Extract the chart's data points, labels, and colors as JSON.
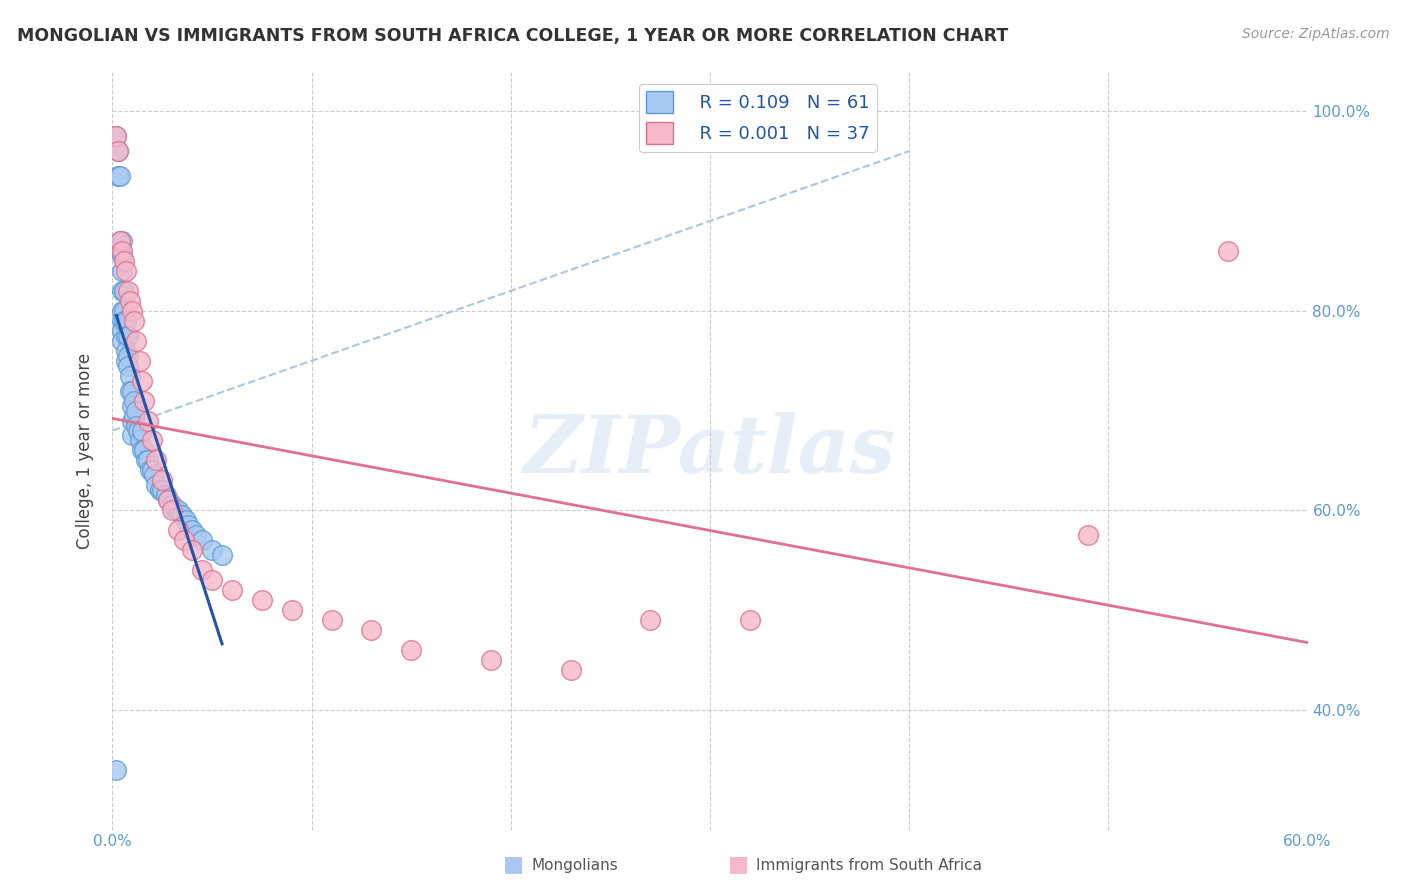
{
  "title": "MONGOLIAN VS IMMIGRANTS FROM SOUTH AFRICA COLLEGE, 1 YEAR OR MORE CORRELATION CHART",
  "source": "Source: ZipAtlas.com",
  "ylabel": "College, 1 year or more",
  "xlim": [
    0.0,
    0.6
  ],
  "ylim": [
    0.28,
    1.04
  ],
  "yticks": [
    0.4,
    0.6,
    0.8,
    1.0
  ],
  "ytick_labels": [
    "40.0%",
    "60.0%",
    "80.0%",
    "100.0%"
  ],
  "xtick_positions": [
    0.0,
    0.1,
    0.2,
    0.3,
    0.4,
    0.5,
    0.6
  ],
  "xtick_labels": [
    "0.0%",
    "",
    "",
    "",
    "",
    "",
    "60.0%"
  ],
  "legend_blue_r": "R = 0.109",
  "legend_blue_n": "N = 61",
  "legend_pink_r": "R = 0.001",
  "legend_pink_n": "N = 37",
  "watermark": "ZIPatlas",
  "blue_r": 0.109,
  "pink_r": 0.001,
  "blue_fill": "#A8C8F0",
  "blue_edge": "#5B9BD5",
  "pink_fill": "#F4B8C8",
  "pink_edge": "#E07090",
  "blue_line_color": "#2255AA",
  "pink_line_color": "#E07090",
  "dashed_line_color": "#A0C0E0",
  "mongolians_x": [
    0.002,
    0.003,
    0.003,
    0.004,
    0.004,
    0.004,
    0.005,
    0.005,
    0.005,
    0.005,
    0.005,
    0.005,
    0.005,
    0.005,
    0.006,
    0.006,
    0.006,
    0.007,
    0.007,
    0.007,
    0.007,
    0.008,
    0.008,
    0.008,
    0.009,
    0.009,
    0.01,
    0.01,
    0.01,
    0.01,
    0.011,
    0.011,
    0.012,
    0.012,
    0.013,
    0.014,
    0.015,
    0.015,
    0.016,
    0.017,
    0.018,
    0.019,
    0.02,
    0.021,
    0.022,
    0.024,
    0.025,
    0.027,
    0.028,
    0.03,
    0.032,
    0.033,
    0.035,
    0.037,
    0.038,
    0.04,
    0.042,
    0.045,
    0.05,
    0.055,
    0.002
  ],
  "mongolians_y": [
    0.975,
    0.96,
    0.935,
    0.935,
    0.87,
    0.86,
    0.87,
    0.855,
    0.84,
    0.82,
    0.8,
    0.79,
    0.78,
    0.77,
    0.82,
    0.8,
    0.79,
    0.79,
    0.775,
    0.76,
    0.75,
    0.775,
    0.755,
    0.745,
    0.735,
    0.72,
    0.72,
    0.705,
    0.69,
    0.675,
    0.71,
    0.695,
    0.7,
    0.685,
    0.68,
    0.67,
    0.68,
    0.66,
    0.66,
    0.65,
    0.65,
    0.64,
    0.64,
    0.635,
    0.625,
    0.62,
    0.62,
    0.615,
    0.61,
    0.605,
    0.6,
    0.6,
    0.595,
    0.59,
    0.585,
    0.58,
    0.575,
    0.57,
    0.56,
    0.555,
    0.34
  ],
  "sa_x": [
    0.002,
    0.003,
    0.004,
    0.005,
    0.006,
    0.007,
    0.008,
    0.009,
    0.01,
    0.011,
    0.012,
    0.014,
    0.015,
    0.016,
    0.018,
    0.02,
    0.022,
    0.025,
    0.028,
    0.03,
    0.033,
    0.036,
    0.04,
    0.045,
    0.05,
    0.06,
    0.075,
    0.09,
    0.11,
    0.13,
    0.15,
    0.19,
    0.23,
    0.27,
    0.32,
    0.49,
    0.56
  ],
  "sa_y": [
    0.975,
    0.96,
    0.87,
    0.86,
    0.85,
    0.84,
    0.82,
    0.81,
    0.8,
    0.79,
    0.77,
    0.75,
    0.73,
    0.71,
    0.69,
    0.67,
    0.65,
    0.63,
    0.61,
    0.6,
    0.58,
    0.57,
    0.56,
    0.54,
    0.53,
    0.52,
    0.51,
    0.5,
    0.49,
    0.48,
    0.46,
    0.45,
    0.44,
    0.49,
    0.49,
    0.575,
    0.86
  ]
}
